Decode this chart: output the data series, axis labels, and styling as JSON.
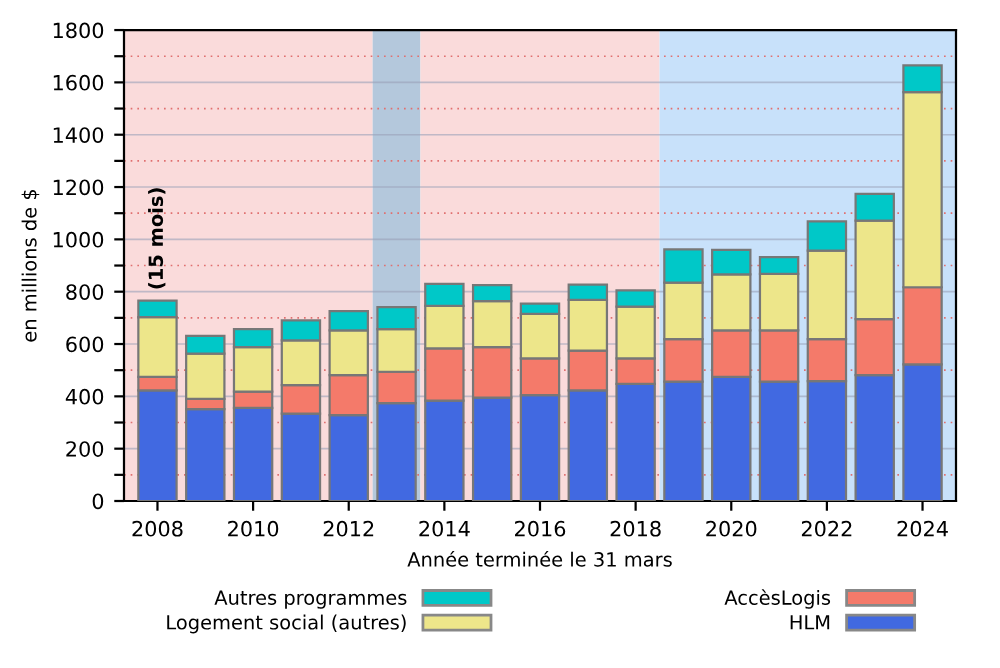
{
  "chart_data": {
    "type": "bar",
    "stacked": true,
    "xlabel": "Année terminée le 31 mars",
    "ylabel": "en millions de $",
    "x": [
      2008,
      2009,
      2010,
      2011,
      2012,
      2013,
      2014,
      2015,
      2016,
      2017,
      2018,
      2019,
      2020,
      2021,
      2022,
      2023,
      2024
    ],
    "series": [
      {
        "name": "HLM",
        "color": "#4169e1",
        "values": [
          423,
          351,
          356,
          334,
          328,
          374,
          384,
          395,
          405,
          423,
          448,
          456,
          474,
          456,
          458,
          481,
          522
        ]
      },
      {
        "name": "AccèsLogis",
        "color": "#f47a6a",
        "values": [
          51,
          39,
          62,
          109,
          153,
          120,
          199,
          193,
          140,
          152,
          97,
          163,
          178,
          196,
          161,
          214,
          295
        ]
      },
      {
        "name": "Logement social (autres)",
        "color": "#ede68a",
        "values": [
          229,
          173,
          170,
          171,
          171,
          163,
          163,
          176,
          170,
          194,
          198,
          216,
          214,
          216,
          338,
          377,
          746
        ]
      },
      {
        "name": "Autres programmes",
        "color": "#00c8c8",
        "values": [
          63,
          68,
          69,
          76,
          74,
          84,
          84,
          61,
          39,
          58,
          62,
          127,
          94,
          64,
          112,
          102,
          102
        ]
      }
    ],
    "xlim": [
      2007.3,
      2024.7
    ],
    "xticks": [
      2008,
      2010,
      2012,
      2014,
      2016,
      2018,
      2020,
      2022,
      2024
    ],
    "ylim": [
      0,
      1800
    ],
    "yticks": [
      0,
      {
        "value": 100,
        "label": null
      },
      200,
      {
        "value": 300,
        "label": null
      },
      400,
      {
        "value": 500,
        "label": null
      },
      600,
      {
        "value": 700,
        "label": null
      },
      800,
      {
        "value": 900,
        "label": null
      },
      1000,
      {
        "value": 1100,
        "label": null
      },
      1200,
      {
        "value": 1300,
        "label": null
      },
      1400,
      {
        "value": 1500,
        "label": null
      },
      1600,
      {
        "value": 1700,
        "label": null
      },
      1800
    ],
    "bands": [
      {
        "axis": "x",
        "from": 2007.3,
        "to": 2012.5,
        "color": "#fadbdb"
      },
      {
        "axis": "x",
        "from": 2012.5,
        "to": 2013.5,
        "color": "#b4c8dc"
      },
      {
        "axis": "x",
        "from": 2013.5,
        "to": 2018.5,
        "color": "#fadbdb"
      },
      {
        "axis": "x",
        "from": 2018.5,
        "to": 2024.7,
        "color": "#c8e1fa"
      }
    ],
    "annotations": [
      {
        "text": "(15 mois)",
        "x": 2008,
        "y": 766
      }
    ],
    "grid": "y",
    "legend": "bottom"
  }
}
